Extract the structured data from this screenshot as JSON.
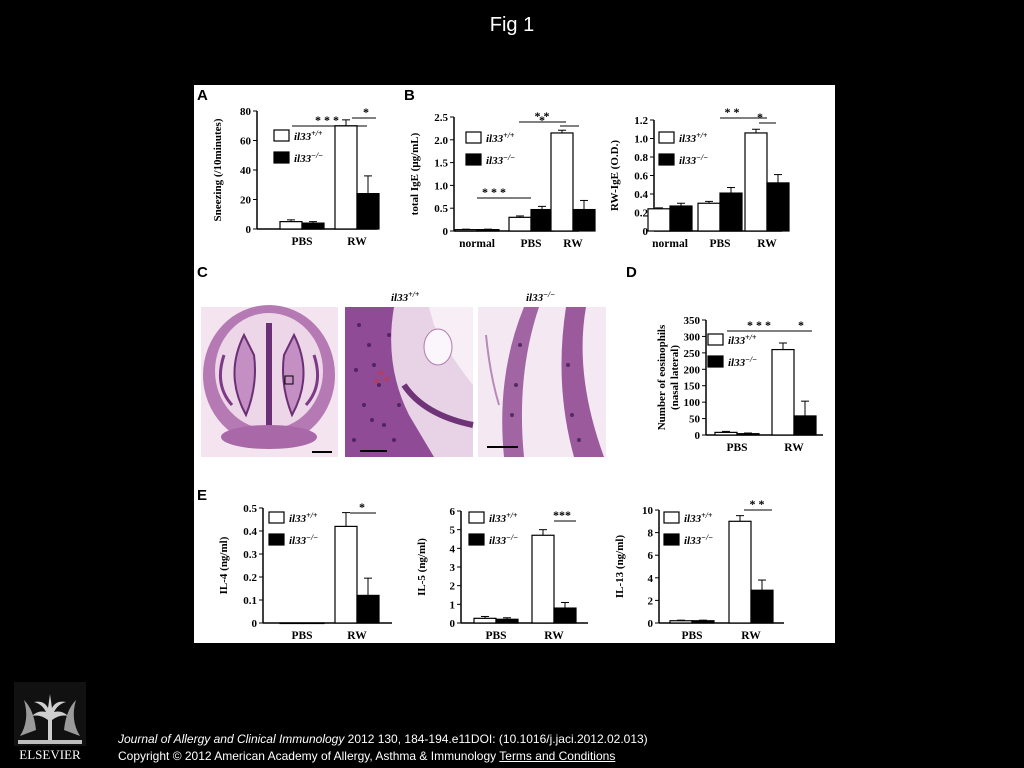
{
  "slide": {
    "title": "Fig 1"
  },
  "panels": {
    "A": {
      "letter": "A"
    },
    "B": {
      "letter": "B"
    },
    "C": {
      "letter": "C"
    },
    "D": {
      "letter": "D"
    },
    "E": {
      "letter": "E"
    }
  },
  "legend": {
    "wt_base": "il33",
    "wt_sup": "+/+",
    "ko_base": "il33",
    "ko_sup": "−/−"
  },
  "histology": {
    "wt_label_base": "il33",
    "wt_label_sup": "+/+",
    "ko_label_base": "il33",
    "ko_label_sup": "−/−"
  },
  "colors": {
    "wt_fill": "#ffffff",
    "ko_fill": "#000000",
    "stain_bg": "#f3e4ef",
    "stain_tissue": "#b57ab3",
    "stain_nuclei": "#5a2d6e"
  },
  "chart_data": [
    {
      "id": "A",
      "type": "bar",
      "ylabel": "Sneezing (/10minutes)",
      "categories": [
        "PBS",
        "RW"
      ],
      "ylim": [
        0,
        80
      ],
      "yticks": [
        0,
        20,
        40,
        60,
        80
      ],
      "series": [
        {
          "name": "il33+/+",
          "values": [
            5,
            70
          ],
          "errors": [
            1.2,
            4
          ]
        },
        {
          "name": "il33−/−",
          "values": [
            4,
            24
          ],
          "errors": [
            1,
            12
          ]
        }
      ],
      "significance": [
        {
          "label": "* * *"
        },
        {
          "label": "*"
        }
      ]
    },
    {
      "id": "B1",
      "type": "bar",
      "ylabel": "total IgE (μg/mL)",
      "categories": [
        "normal",
        "PBS",
        "RW"
      ],
      "ylim": [
        0,
        2.5
      ],
      "yticks": [
        "0",
        "0.5",
        "1.0",
        "1.5",
        "2.0",
        "2.5"
      ],
      "series": [
        {
          "name": "il33+/+",
          "values": [
            0.03,
            0.3,
            2.15
          ],
          "errors": [
            0.01,
            0.03,
            0.06
          ]
        },
        {
          "name": "il33−/−",
          "values": [
            0.03,
            0.47,
            0.47
          ],
          "errors": [
            0.01,
            0.07,
            0.2
          ]
        }
      ],
      "significance": [
        {
          "label": "* * *"
        },
        {
          "label": "* *"
        },
        {
          "label": "*"
        }
      ]
    },
    {
      "id": "B2",
      "type": "bar",
      "ylabel": "RW-IgE (O.D.)",
      "categories": [
        "normal",
        "PBS",
        "RW"
      ],
      "ylim": [
        0,
        1.2
      ],
      "yticks": [
        "0",
        "0.2",
        "0.4",
        "0.6",
        "0.8",
        "1.0",
        "1.2"
      ],
      "series": [
        {
          "name": "il33+/+",
          "values": [
            0.24,
            0.3,
            1.06
          ],
          "errors": [
            0.01,
            0.02,
            0.04
          ]
        },
        {
          "name": "il33−/−",
          "values": [
            0.27,
            0.41,
            0.52
          ],
          "errors": [
            0.03,
            0.06,
            0.09
          ]
        }
      ],
      "significance": [
        {
          "label": "* *"
        },
        {
          "label": "*"
        }
      ]
    },
    {
      "id": "D",
      "type": "bar",
      "ylabel": "Number of eosinophils",
      "ylabel2": "(nasal lateral)",
      "categories": [
        "PBS",
        "RW"
      ],
      "ylim": [
        0,
        350
      ],
      "yticks": [
        0,
        50,
        100,
        150,
        200,
        250,
        300,
        350
      ],
      "series": [
        {
          "name": "il33+/+",
          "values": [
            8,
            260
          ],
          "errors": [
            3,
            20
          ]
        },
        {
          "name": "il33−/−",
          "values": [
            4,
            58
          ],
          "errors": [
            2,
            45
          ]
        }
      ],
      "significance": [
        {
          "label": "* * *"
        },
        {
          "label": "*"
        }
      ]
    },
    {
      "id": "E1",
      "type": "bar",
      "ylabel": "IL-4 (ng/ml)",
      "categories": [
        "PBS",
        "RW"
      ],
      "ylim": [
        0,
        0.5
      ],
      "yticks": [
        "0",
        "0.1",
        "0.2",
        "0.3",
        "0.4",
        "0.5"
      ],
      "series": [
        {
          "name": "il33+/+",
          "values": [
            0,
            0.42
          ],
          "errors": [
            0,
            0.06
          ]
        },
        {
          "name": "il33−/−",
          "values": [
            0,
            0.12
          ],
          "errors": [
            0,
            0.075
          ]
        }
      ],
      "significance": [
        {
          "label": "*"
        }
      ]
    },
    {
      "id": "E2",
      "type": "bar",
      "ylabel": "IL-5 (ng/ml)",
      "categories": [
        "PBS",
        "RW"
      ],
      "ylim": [
        0,
        6
      ],
      "yticks": [
        0,
        1,
        2,
        3,
        4,
        5,
        6
      ],
      "series": [
        {
          "name": "il33+/+",
          "values": [
            0.25,
            4.7
          ],
          "errors": [
            0.1,
            0.3
          ]
        },
        {
          "name": "il33−/−",
          "values": [
            0.2,
            0.8
          ],
          "errors": [
            0.08,
            0.3
          ]
        }
      ],
      "significance": [
        {
          "label": "***"
        }
      ]
    },
    {
      "id": "E3",
      "type": "bar",
      "ylabel": "IL-13 (ng/ml)",
      "categories": [
        "PBS",
        "RW"
      ],
      "ylim": [
        0,
        10
      ],
      "yticks": [
        0,
        2,
        4,
        6,
        8,
        10
      ],
      "series": [
        {
          "name": "il33+/+",
          "values": [
            0.2,
            9
          ],
          "errors": [
            0.05,
            0.5
          ]
        },
        {
          "name": "il33−/−",
          "values": [
            0.2,
            2.9
          ],
          "errors": [
            0.05,
            0.9
          ]
        }
      ],
      "significance": [
        {
          "label": "* *"
        }
      ]
    }
  ],
  "footer": {
    "logo_text": "ELSEVIER",
    "journal": "Journal of Allergy and Clinical Immunology",
    "citation_rest": " 2012 130, 184-194.e11DOI: (10.1016/j.jaci.2012.02.013)",
    "copyright": "Copyright © 2012 American Academy of Allergy, Asthma & Immunology",
    "terms_link": "Terms and Conditions"
  }
}
